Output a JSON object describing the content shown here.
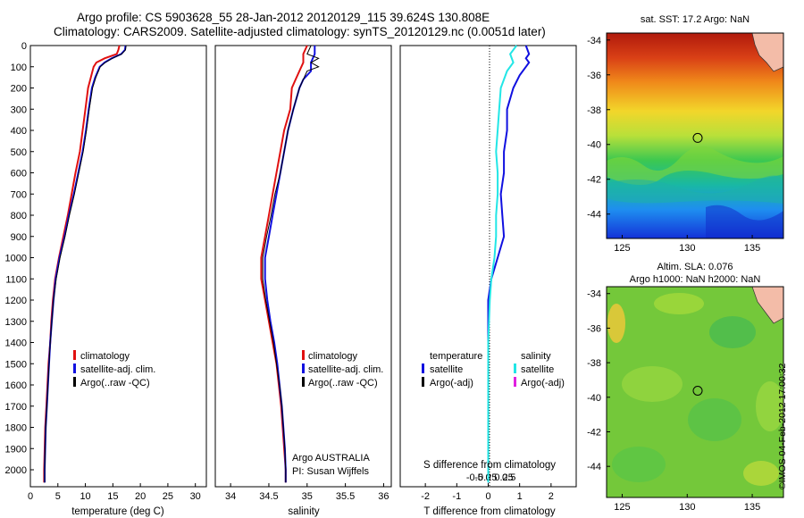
{
  "title_line1": "Argo profile: CS 5903628_55 28-Jan-2012 20120129_115 39.624S 130.808E",
  "title_line2": "Climatology: CARS2009. Satellite-adjusted climatology: synTS_20120129.nc (0.0051d later)",
  "credit": "©IMOS 04-Feb-2012 17:00:32",
  "colors": {
    "climatology": "#e01010",
    "satellite": "#1010e0",
    "argo": "#000000",
    "sat_salinity": "#22e6e6",
    "argo_adj": "#e020e0"
  },
  "chart_data": [
    {
      "id": "temperature",
      "type": "line",
      "xlabel": "temperature (deg C)",
      "ylabel": "",
      "xlim": [
        0,
        32
      ],
      "ylim": [
        2080,
        0
      ],
      "xticks": [
        0,
        5,
        10,
        15,
        20,
        25,
        30
      ],
      "yticks": [
        0,
        100,
        200,
        300,
        400,
        500,
        600,
        700,
        800,
        900,
        1000,
        1100,
        1200,
        1300,
        1400,
        1500,
        1600,
        1700,
        1800,
        1900,
        2000
      ],
      "legend": [
        "climatology",
        "satellite-adj. clim.",
        "Argo(..raw -QC)"
      ],
      "legend_position": "lower-right",
      "series": [
        {
          "name": "climatology",
          "color": "#e01010",
          "points": [
            [
              16.2,
              0
            ],
            [
              16.0,
              20
            ],
            [
              15.7,
              40
            ],
            [
              13.5,
              60
            ],
            [
              12.0,
              80
            ],
            [
              11.5,
              100
            ],
            [
              11.0,
              150
            ],
            [
              10.5,
              200
            ],
            [
              10.0,
              300
            ],
            [
              9.5,
              400
            ],
            [
              9.0,
              500
            ],
            [
              8.2,
              600
            ],
            [
              7.5,
              700
            ],
            [
              6.8,
              800
            ],
            [
              6.0,
              900
            ],
            [
              5.2,
              1000
            ],
            [
              4.5,
              1100
            ],
            [
              4.1,
              1200
            ],
            [
              3.8,
              1300
            ],
            [
              3.6,
              1400
            ],
            [
              3.3,
              1500
            ],
            [
              3.1,
              1600
            ],
            [
              2.9,
              1700
            ],
            [
              2.7,
              1800
            ],
            [
              2.6,
              1900
            ],
            [
              2.5,
              2000
            ],
            [
              2.5,
              2060
            ]
          ]
        },
        {
          "name": "satellite-adj. clim.",
          "color": "#1010e0",
          "points": [
            [
              17.3,
              0
            ],
            [
              17.2,
              20
            ],
            [
              16.5,
              40
            ],
            [
              14.8,
              60
            ],
            [
              13.5,
              80
            ],
            [
              12.6,
              100
            ],
            [
              11.8,
              150
            ],
            [
              11.2,
              200
            ],
            [
              10.6,
              300
            ],
            [
              10.1,
              400
            ],
            [
              9.5,
              500
            ],
            [
              8.7,
              600
            ],
            [
              7.9,
              700
            ],
            [
              7.0,
              800
            ],
            [
              6.2,
              900
            ],
            [
              5.3,
              1000
            ],
            [
              4.6,
              1100
            ],
            [
              4.2,
              1200
            ],
            [
              3.9,
              1300
            ],
            [
              3.6,
              1400
            ],
            [
              3.4,
              1500
            ],
            [
              3.2,
              1600
            ],
            [
              3.0,
              1700
            ],
            [
              2.8,
              1800
            ],
            [
              2.7,
              1900
            ],
            [
              2.6,
              2000
            ],
            [
              2.6,
              2060
            ]
          ]
        },
        {
          "name": "Argo(..raw -QC)",
          "color": "#000000",
          "points": [
            [
              17.4,
              0
            ],
            [
              17.3,
              20
            ],
            [
              16.6,
              40
            ],
            [
              14.9,
              60
            ],
            [
              13.6,
              80
            ],
            [
              12.7,
              100
            ],
            [
              11.9,
              150
            ],
            [
              11.3,
              200
            ],
            [
              10.7,
              300
            ],
            [
              10.2,
              400
            ],
            [
              9.6,
              500
            ],
            [
              8.8,
              600
            ],
            [
              8.0,
              700
            ],
            [
              7.1,
              800
            ],
            [
              6.3,
              900
            ],
            [
              5.4,
              1000
            ],
            [
              4.7,
              1100
            ],
            [
              4.2,
              1200
            ],
            [
              3.9,
              1300
            ],
            [
              3.6,
              1400
            ],
            [
              3.4,
              1500
            ],
            [
              3.2,
              1600
            ],
            [
              3.0,
              1700
            ],
            [
              2.8,
              1800
            ],
            [
              2.7,
              1900
            ],
            [
              2.6,
              2000
            ],
            [
              2.6,
              2060
            ]
          ]
        }
      ]
    },
    {
      "id": "salinity",
      "type": "line",
      "xlabel": "salinity",
      "ylabel": "",
      "xlim": [
        33.8,
        36.1
      ],
      "ylim": [
        2080,
        0
      ],
      "xticks": [
        34,
        34.5,
        35,
        35.5,
        36
      ],
      "legend": [
        "climatology",
        "satellite-adj. clim.",
        "Argo(..raw -QC)"
      ],
      "legend_position": "lower-right",
      "annotation": [
        "Argo AUSTRALIA",
        "PI: Susan Wijffels"
      ],
      "series": [
        {
          "name": "climatology",
          "color": "#e01010",
          "points": [
            [
              35.0,
              0
            ],
            [
              34.95,
              40
            ],
            [
              34.95,
              80
            ],
            [
              34.9,
              120
            ],
            [
              34.85,
              160
            ],
            [
              34.8,
              200
            ],
            [
              34.78,
              300
            ],
            [
              34.7,
              400
            ],
            [
              34.65,
              500
            ],
            [
              34.6,
              600
            ],
            [
              34.55,
              700
            ],
            [
              34.5,
              800
            ],
            [
              34.45,
              900
            ],
            [
              34.4,
              1000
            ],
            [
              34.4,
              1100
            ],
            [
              34.45,
              1200
            ],
            [
              34.5,
              1300
            ],
            [
              34.55,
              1400
            ],
            [
              34.6,
              1500
            ],
            [
              34.63,
              1600
            ],
            [
              34.66,
              1700
            ],
            [
              34.68,
              1800
            ],
            [
              34.7,
              1900
            ],
            [
              34.72,
              2000
            ],
            [
              34.72,
              2060
            ]
          ]
        },
        {
          "name": "satellite-adj. clim.",
          "color": "#1010e0",
          "points": [
            [
              35.1,
              0
            ],
            [
              35.1,
              40
            ],
            [
              35.05,
              80
            ],
            [
              35.05,
              120
            ],
            [
              34.95,
              160
            ],
            [
              34.9,
              200
            ],
            [
              34.82,
              300
            ],
            [
              34.75,
              400
            ],
            [
              34.7,
              500
            ],
            [
              34.65,
              600
            ],
            [
              34.6,
              700
            ],
            [
              34.55,
              800
            ],
            [
              34.5,
              900
            ],
            [
              34.45,
              1000
            ],
            [
              34.45,
              1100
            ],
            [
              34.48,
              1200
            ],
            [
              34.52,
              1300
            ],
            [
              34.57,
              1400
            ],
            [
              34.61,
              1500
            ],
            [
              34.64,
              1600
            ],
            [
              34.67,
              1700
            ],
            [
              34.69,
              1800
            ],
            [
              34.71,
              1900
            ],
            [
              34.72,
              2000
            ],
            [
              34.72,
              2060
            ]
          ]
        },
        {
          "name": "Argo(..raw -QC)",
          "color": "#000000",
          "points": [
            [
              35.05,
              0
            ],
            [
              35.0,
              40
            ],
            [
              35.15,
              60
            ],
            [
              35.05,
              80
            ],
            [
              35.15,
              100
            ],
            [
              35.0,
              120
            ],
            [
              34.95,
              160
            ],
            [
              34.9,
              200
            ],
            [
              34.82,
              300
            ],
            [
              34.75,
              400
            ],
            [
              34.7,
              500
            ],
            [
              34.65,
              600
            ],
            [
              34.58,
              700
            ],
            [
              34.53,
              800
            ],
            [
              34.47,
              900
            ],
            [
              34.42,
              1000
            ],
            [
              34.42,
              1100
            ],
            [
              34.46,
              1200
            ],
            [
              34.51,
              1300
            ],
            [
              34.56,
              1400
            ],
            [
              34.6,
              1500
            ],
            [
              34.64,
              1600
            ],
            [
              34.67,
              1700
            ],
            [
              34.69,
              1800
            ],
            [
              34.71,
              1900
            ],
            [
              34.72,
              2000
            ],
            [
              34.72,
              2060
            ]
          ]
        }
      ]
    },
    {
      "id": "difference",
      "type": "line",
      "xlabel": "T difference from climatology",
      "xlabel_top": "S difference from climatology",
      "xlim": [
        -2.8,
        2.8
      ],
      "ylim": [
        2080,
        0
      ],
      "xticks": [
        -2,
        -1,
        0,
        1,
        2
      ],
      "xticks_s_labels": [
        "-0.5",
        "-0.25",
        "0",
        "0.25",
        "0.5"
      ],
      "legend_left": {
        "title": "temperature",
        "items": [
          "satellite",
          "Argo(-adj)"
        ]
      },
      "legend_right": {
        "title": "salinity",
        "items": [
          "satellite",
          "Argo(-adj)"
        ]
      },
      "series": [
        {
          "name": "satellite",
          "group": "temperature",
          "color": "#1010e0",
          "points": [
            [
              1.2,
              0
            ],
            [
              1.3,
              40
            ],
            [
              1.2,
              60
            ],
            [
              1.3,
              80
            ],
            [
              1.2,
              100
            ],
            [
              1.0,
              140
            ],
            [
              0.8,
              200
            ],
            [
              0.6,
              300
            ],
            [
              0.6,
              400
            ],
            [
              0.5,
              500
            ],
            [
              0.5,
              600
            ],
            [
              0.4,
              700
            ],
            [
              0.45,
              800
            ],
            [
              0.5,
              900
            ],
            [
              0.3,
              1000
            ],
            [
              0.1,
              1100
            ],
            [
              0.0,
              1200
            ],
            [
              0.0,
              1400
            ],
            [
              0.0,
              2060
            ]
          ]
        },
        {
          "name": "satellite",
          "group": "salinity",
          "color": "#22e6e6",
          "points": [
            [
              0.9,
              0
            ],
            [
              0.7,
              40
            ],
            [
              0.8,
              80
            ],
            [
              0.6,
              120
            ],
            [
              0.4,
              200
            ],
            [
              0.35,
              300
            ],
            [
              0.3,
              400
            ],
            [
              0.25,
              500
            ],
            [
              0.3,
              600
            ],
            [
              0.3,
              700
            ],
            [
              0.25,
              800
            ],
            [
              0.25,
              900
            ],
            [
              0.2,
              1000
            ],
            [
              0.1,
              1100
            ],
            [
              0.05,
              1200
            ],
            [
              0.0,
              1400
            ],
            [
              0.0,
              2060
            ]
          ]
        }
      ]
    },
    {
      "id": "sst-map",
      "type": "heatmap",
      "title": "sat. SST: 17.2 Argo: NaN",
      "xticks": [
        125,
        130,
        135
      ],
      "yticks": [
        -34,
        -36,
        -38,
        -40,
        -42,
        -44
      ],
      "marker": [
        130.808,
        -39.624
      ]
    },
    {
      "id": "sla-map",
      "type": "heatmap",
      "title_line1": "Altim. SLA: 0.076",
      "title_line2": "Argo h1000: NaN h2000: NaN",
      "xticks": [
        125,
        130,
        135
      ],
      "yticks": [
        -34,
        -36,
        -38,
        -40,
        -42,
        -44
      ],
      "marker": [
        130.808,
        -39.624
      ]
    }
  ]
}
